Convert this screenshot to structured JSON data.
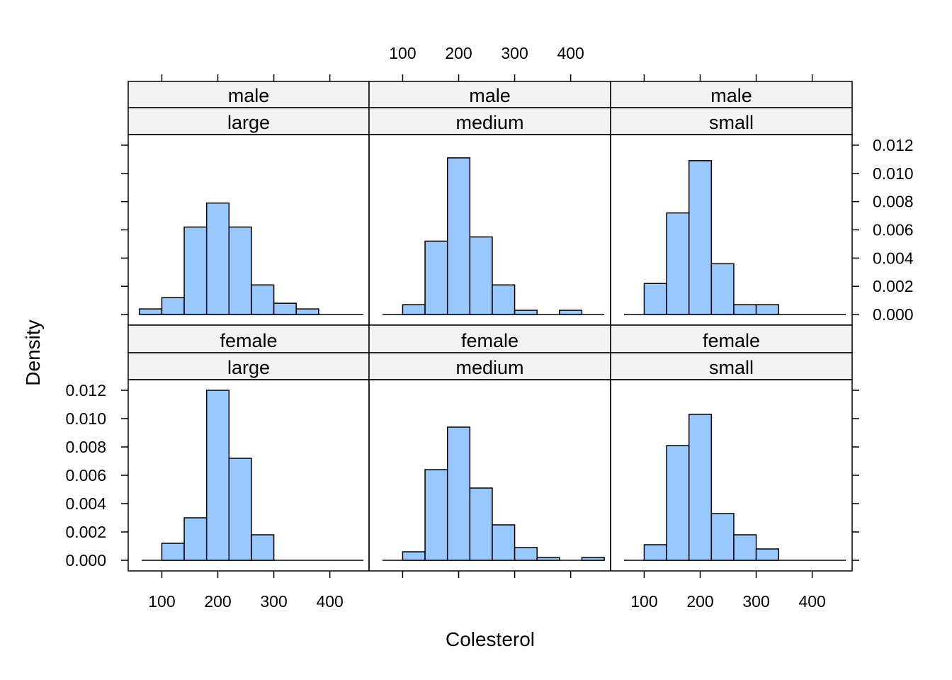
{
  "chart_data": {
    "type": "bar",
    "layout": "lattice histogram, 3 columns x 2 rows",
    "xlabel": "Colesterol",
    "ylabel": "Density",
    "xlim": [
      40,
      470
    ],
    "ylim": [
      -0.00075,
      0.01275
    ],
    "x_ticks": [
      100,
      200,
      300,
      400
    ],
    "x_tick_labels": [
      "100",
      "200",
      "300",
      "400"
    ],
    "y_ticks": [
      0.0,
      0.002,
      0.004,
      0.006,
      0.008,
      0.01,
      0.012
    ],
    "y_tick_labels": [
      "0.000",
      "0.002",
      "0.004",
      "0.006",
      "0.008",
      "0.010",
      "0.012"
    ],
    "bar_color": "#99c8ff",
    "strip_color": "#f2f2f2",
    "bin_edges": [
      60,
      100,
      140,
      180,
      220,
      260,
      300,
      340,
      380,
      420,
      460
    ],
    "panels": [
      {
        "row": "top",
        "col": 0,
        "strips": [
          "male",
          "large"
        ],
        "values": [
          0.0004,
          0.0012,
          0.0062,
          0.0079,
          0.0062,
          0.0021,
          0.0008,
          0.0004,
          0,
          0
        ]
      },
      {
        "row": "top",
        "col": 1,
        "strips": [
          "male",
          "medium"
        ],
        "values": [
          0,
          0.0007,
          0.0052,
          0.0111,
          0.0055,
          0.0021,
          0.0003,
          0,
          0.0003,
          0
        ]
      },
      {
        "row": "top",
        "col": 2,
        "strips": [
          "male",
          "small"
        ],
        "values": [
          0,
          0.0022,
          0.0072,
          0.0109,
          0.0036,
          0.0007,
          0.0007,
          0,
          0,
          0
        ]
      },
      {
        "row": "bottom",
        "col": 0,
        "strips": [
          "female",
          "large"
        ],
        "values": [
          0,
          0.0012,
          0.003,
          0.012,
          0.0072,
          0.0018,
          0,
          0,
          0,
          0
        ]
      },
      {
        "row": "bottom",
        "col": 1,
        "strips": [
          "female",
          "medium"
        ],
        "values": [
          0,
          0.0006,
          0.0064,
          0.0094,
          0.0051,
          0.0025,
          0.0009,
          0.0002,
          0,
          0.0002
        ]
      },
      {
        "row": "bottom",
        "col": 2,
        "strips": [
          "female",
          "small"
        ],
        "values": [
          0,
          0.0011,
          0.0081,
          0.0103,
          0.0033,
          0.0018,
          0.0008,
          0,
          0,
          0
        ]
      }
    ]
  }
}
